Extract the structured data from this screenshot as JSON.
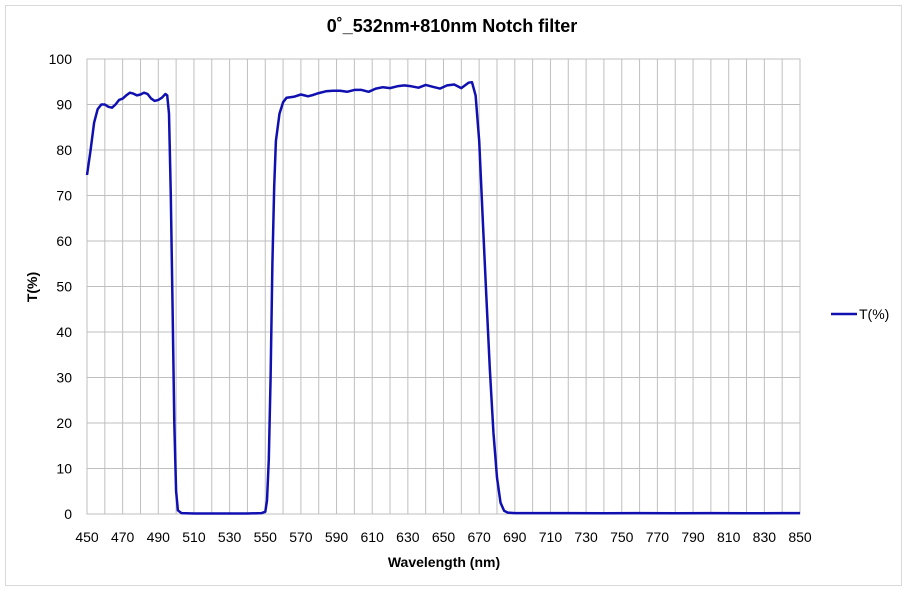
{
  "chart_data": {
    "type": "line",
    "title": "0˚_532nm+810nm Notch filter",
    "xlabel": "Wavelength (nm)",
    "ylabel": "T(%)",
    "xlim": [
      450,
      850
    ],
    "ylim": [
      0,
      100
    ],
    "xticks": [
      450,
      470,
      490,
      510,
      530,
      550,
      570,
      590,
      610,
      630,
      650,
      670,
      690,
      710,
      730,
      750,
      770,
      790,
      810,
      830,
      850
    ],
    "yticks": [
      0,
      10,
      20,
      30,
      40,
      50,
      60,
      70,
      80,
      90,
      100
    ],
    "x_gridlines_every": 10,
    "grid": true,
    "legend_position": "right",
    "color": "#1010b0",
    "series": [
      {
        "name": "T(%)",
        "points": [
          [
            450,
            74.5
          ],
          [
            452,
            80
          ],
          [
            454,
            86
          ],
          [
            456,
            89
          ],
          [
            458,
            90
          ],
          [
            460,
            90
          ],
          [
            462,
            89.5
          ],
          [
            464,
            89.3
          ],
          [
            466,
            90
          ],
          [
            468,
            91
          ],
          [
            470,
            91.3
          ],
          [
            472,
            92
          ],
          [
            474,
            92.6
          ],
          [
            476,
            92.4
          ],
          [
            478,
            92
          ],
          [
            480,
            92.2
          ],
          [
            482,
            92.6
          ],
          [
            484,
            92.3
          ],
          [
            486,
            91.3
          ],
          [
            488,
            90.8
          ],
          [
            490,
            91
          ],
          [
            492,
            91.5
          ],
          [
            494,
            92.3
          ],
          [
            495,
            92
          ],
          [
            496,
            88
          ],
          [
            497,
            70
          ],
          [
            498,
            45
          ],
          [
            499,
            20
          ],
          [
            500,
            5
          ],
          [
            501,
            0.8
          ],
          [
            503,
            0.2
          ],
          [
            510,
            0.1
          ],
          [
            520,
            0.1
          ],
          [
            530,
            0.1
          ],
          [
            540,
            0.1
          ],
          [
            548,
            0.2
          ],
          [
            550,
            0.5
          ],
          [
            551,
            3
          ],
          [
            552,
            12
          ],
          [
            553,
            30
          ],
          [
            554,
            55
          ],
          [
            555,
            72
          ],
          [
            556,
            82
          ],
          [
            558,
            88
          ],
          [
            560,
            90.5
          ],
          [
            562,
            91.5
          ],
          [
            566,
            91.7
          ],
          [
            570,
            92.2
          ],
          [
            572,
            92
          ],
          [
            574,
            91.8
          ],
          [
            576,
            92
          ],
          [
            580,
            92.5
          ],
          [
            584,
            92.9
          ],
          [
            588,
            93
          ],
          [
            592,
            93
          ],
          [
            596,
            92.8
          ],
          [
            600,
            93.2
          ],
          [
            604,
            93.2
          ],
          [
            608,
            92.8
          ],
          [
            612,
            93.5
          ],
          [
            616,
            93.8
          ],
          [
            620,
            93.6
          ],
          [
            624,
            94
          ],
          [
            628,
            94.2
          ],
          [
            632,
            94
          ],
          [
            636,
            93.7
          ],
          [
            640,
            94.3
          ],
          [
            644,
            93.9
          ],
          [
            648,
            93.5
          ],
          [
            652,
            94.2
          ],
          [
            656,
            94.4
          ],
          [
            660,
            93.6
          ],
          [
            664,
            94.8
          ],
          [
            666,
            94.9
          ],
          [
            668,
            92
          ],
          [
            670,
            82
          ],
          [
            672,
            65
          ],
          [
            674,
            48
          ],
          [
            676,
            32
          ],
          [
            678,
            18
          ],
          [
            680,
            8
          ],
          [
            682,
            2.5
          ],
          [
            684,
            0.7
          ],
          [
            686,
            0.3
          ],
          [
            690,
            0.2
          ],
          [
            700,
            0.2
          ],
          [
            720,
            0.2
          ],
          [
            740,
            0.15
          ],
          [
            760,
            0.2
          ],
          [
            780,
            0.15
          ],
          [
            800,
            0.2
          ],
          [
            820,
            0.15
          ],
          [
            840,
            0.2
          ],
          [
            850,
            0.2
          ]
        ]
      }
    ]
  }
}
